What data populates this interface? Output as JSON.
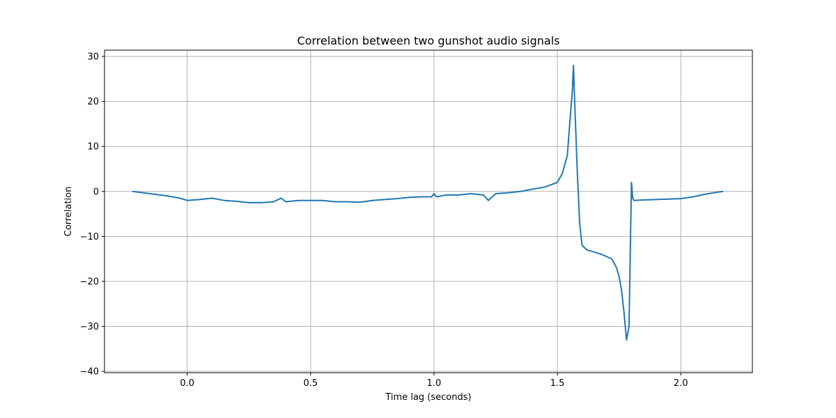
{
  "chart_data": {
    "type": "line",
    "title": "Correlation between two gunshot audio signals",
    "xlabel": "Time lag (seconds)",
    "ylabel": "Correlation",
    "xlim": [
      -0.335,
      2.29
    ],
    "ylim": [
      -40.3,
      31.4
    ],
    "xticks": [
      0.0,
      0.5,
      1.0,
      1.5,
      2.0
    ],
    "xtick_labels": [
      "0.0",
      "0.5",
      "1.0",
      "1.5",
      "2.0"
    ],
    "yticks": [
      30,
      20,
      10,
      0,
      -10,
      -20,
      -30,
      -40
    ],
    "ytick_labels": [
      "30",
      "20",
      "10",
      "0",
      "−10",
      "−20",
      "−30",
      "−40"
    ],
    "grid": true,
    "series": [
      {
        "color": "#1f77b4",
        "x": [
          -0.22,
          -0.15,
          -0.08,
          -0.03,
          0.0,
          0.05,
          0.1,
          0.15,
          0.2,
          0.25,
          0.3,
          0.35,
          0.38,
          0.4,
          0.45,
          0.5,
          0.55,
          0.6,
          0.65,
          0.7,
          0.75,
          0.8,
          0.85,
          0.9,
          0.95,
          0.99,
          1.0,
          1.01,
          1.05,
          1.1,
          1.15,
          1.2,
          1.22,
          1.25,
          1.3,
          1.35,
          1.4,
          1.45,
          1.5,
          1.52,
          1.54,
          1.55,
          1.56,
          1.565,
          1.57,
          1.58,
          1.59,
          1.6,
          1.62,
          1.65,
          1.68,
          1.7,
          1.72,
          1.74,
          1.75,
          1.76,
          1.77,
          1.78,
          1.79,
          1.8,
          1.805,
          1.81,
          1.85,
          1.9,
          1.95,
          2.0,
          2.05,
          2.1,
          2.17
        ],
        "y": [
          0.0,
          -0.5,
          -1.0,
          -1.5,
          -2.0,
          -1.8,
          -1.5,
          -2.0,
          -2.2,
          -2.5,
          -2.5,
          -2.3,
          -1.5,
          -2.3,
          -2.0,
          -2.0,
          -2.0,
          -2.3,
          -2.3,
          -2.4,
          -2.0,
          -1.8,
          -1.6,
          -1.3,
          -1.2,
          -1.2,
          -0.5,
          -1.2,
          -0.8,
          -0.8,
          -0.5,
          -0.8,
          -2.0,
          -0.5,
          -0.3,
          0.0,
          0.5,
          1.0,
          2.0,
          4.0,
          8.0,
          15.0,
          22.0,
          28.0,
          20.0,
          5.0,
          -7.0,
          -12.0,
          -13.0,
          -13.5,
          -14.0,
          -14.5,
          -15.0,
          -17.0,
          -19.0,
          -22.0,
          -27.0,
          -33.0,
          -30.0,
          2.0,
          -1.5,
          -2.0,
          -1.9,
          -1.8,
          -1.7,
          -1.6,
          -1.2,
          -0.6,
          0.0
        ]
      }
    ]
  }
}
